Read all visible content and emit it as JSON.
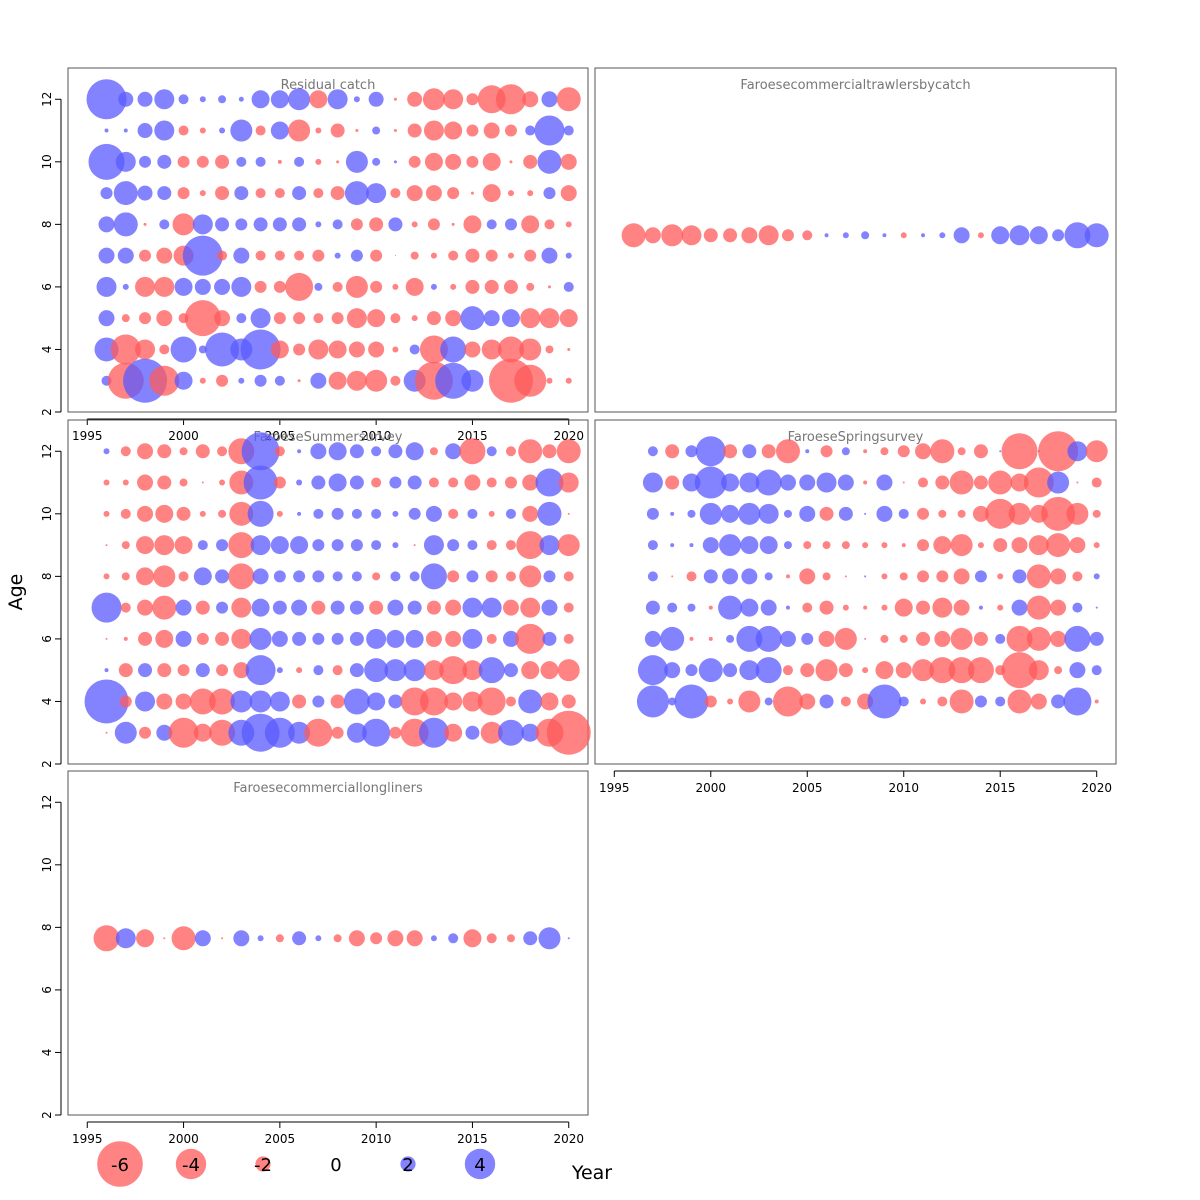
{
  "figure": {
    "ylabel": "Age",
    "xlabel": "Year",
    "colors": {
      "negative": "#ff5a5a",
      "positive": "#5a5aff",
      "fill_opacity": 0.75
    }
  },
  "legend": {
    "values": [
      -6,
      -4,
      -2,
      0,
      2,
      4
    ],
    "labels": [
      "-6",
      "-4",
      "-2",
      "0",
      "2",
      "4"
    ]
  },
  "chart_data": [
    {
      "type": "scatter",
      "title": "Residual catch",
      "xlim": [
        1994,
        2021
      ],
      "ylim": [
        2,
        13
      ],
      "xticks": [
        "1995",
        "2000",
        "2005",
        "2010",
        "2015",
        "2020"
      ],
      "yticks": [
        "2",
        "4",
        "6",
        "8",
        "10",
        "12"
      ],
      "start_year": 1996,
      "ages": [
        12,
        11,
        10,
        9,
        8,
        7,
        6,
        5,
        4,
        3
      ],
      "residuals": [
        [
          4.0,
          1.5,
          1.5,
          2.0,
          1.0,
          0.6,
          0.8,
          0.5,
          1.8,
          1.8,
          2.2,
          -1.8,
          2.0,
          0.6,
          1.5,
          -0.3,
          -1.5,
          -2.2,
          -2.0,
          -1.2,
          -2.8,
          -3.0,
          -1.6,
          1.6,
          -2.4
        ],
        [
          0.4,
          0.4,
          1.5,
          2.0,
          -1.0,
          -0.6,
          0.6,
          2.2,
          -1.0,
          1.8,
          -2.2,
          -0.6,
          -1.4,
          -0.3,
          0.8,
          -0.3,
          -1.4,
          -2.0,
          -1.8,
          -1.2,
          -1.6,
          -1.2,
          1.0,
          3.0,
          1.0
        ],
        [
          3.6,
          2.0,
          1.2,
          1.4,
          -1.2,
          -1.2,
          -1.4,
          1.0,
          1.0,
          -0.4,
          1.0,
          -0.6,
          -0.3,
          2.2,
          0.8,
          0.3,
          -1.2,
          -1.8,
          -1.6,
          -1.2,
          -1.8,
          -0.3,
          -1.4,
          2.4,
          -1.6
        ],
        [
          1.2,
          2.4,
          1.5,
          1.4,
          -1.2,
          -0.6,
          -1.4,
          1.4,
          -1.0,
          -1.0,
          1.4,
          -1.0,
          -1.4,
          2.4,
          2.0,
          -1.0,
          -1.6,
          -1.6,
          -1.2,
          -0.3,
          -1.8,
          -0.6,
          -0.6,
          1.2,
          -1.6
        ],
        [
          1.6,
          2.4,
          -0.3,
          1.0,
          -2.2,
          2.0,
          1.4,
          1.2,
          1.4,
          1.4,
          1.4,
          0.6,
          1.0,
          -1.2,
          -1.4,
          1.4,
          -0.6,
          -1.2,
          -0.3,
          -1.8,
          1.0,
          1.2,
          -1.8,
          -1.0,
          -0.6
        ],
        [
          1.6,
          1.6,
          -1.2,
          -1.6,
          -2.0,
          4.0,
          -1.0,
          1.6,
          -1.0,
          -1.0,
          -1.0,
          -1.2,
          0.6,
          1.2,
          -1.2,
          0.1,
          -0.8,
          -0.6,
          -1.0,
          -1.4,
          -1.2,
          -0.6,
          -1.2,
          1.6,
          0.6
        ],
        [
          2.0,
          0.6,
          -2.0,
          -2.0,
          1.8,
          1.6,
          1.6,
          2.0,
          -1.2,
          -1.2,
          -2.8,
          0.8,
          -1.0,
          -2.2,
          -1.2,
          -0.6,
          -1.8,
          0.6,
          -0.6,
          -1.4,
          -1.4,
          -1.4,
          -0.8,
          -0.3,
          1.0
        ],
        [
          1.6,
          -0.8,
          -1.2,
          -1.6,
          -1.0,
          -3.6,
          -1.6,
          1.0,
          2.0,
          -1.2,
          -1.2,
          -1.0,
          -1.2,
          -2.0,
          -1.8,
          -1.0,
          -0.6,
          -1.4,
          -1.6,
          2.4,
          1.6,
          1.8,
          -2.0,
          -2.0,
          -1.8
        ],
        [
          2.4,
          -3.0,
          -2.0,
          -1.0,
          2.6,
          0.8,
          3.4,
          2.2,
          4.0,
          -1.8,
          -1.2,
          -2.0,
          -1.8,
          -1.6,
          -1.6,
          -0.6,
          1.0,
          -2.8,
          2.6,
          -1.6,
          -2.0,
          -2.6,
          -2.2,
          -0.8,
          -0.3
        ],
        [
          1.0,
          -3.6,
          4.4,
          -3.0,
          1.8,
          -0.6,
          -1.2,
          0.6,
          1.2,
          1.0,
          -0.3,
          1.6,
          -1.8,
          -2.0,
          -2.2,
          -1.0,
          2.2,
          -3.8,
          3.6,
          2.2,
          -0.1,
          -4.4,
          -3.2,
          -0.6,
          -0.6
        ]
      ]
    },
    {
      "type": "scatter",
      "title": "Faroesecommercialtrawlersbycatch",
      "xlim": [
        1994,
        2021
      ],
      "ylim": [
        2,
        13
      ],
      "start_year": 1996,
      "ages": [
        7.65
      ],
      "residuals": [
        [
          -2.4,
          -1.6,
          -2.2,
          -2.0,
          -1.4,
          -1.4,
          -1.6,
          -2.0,
          -1.2,
          -1.0,
          0.4,
          0.6,
          0.8,
          0.4,
          -0.6,
          0.4,
          0.6,
          1.6,
          -0.6,
          1.8,
          2.0,
          1.8,
          1.2,
          2.6,
          2.4
        ]
      ]
    },
    {
      "type": "scatter",
      "title": "FaroeseSummersurvey",
      "xlim": [
        1994,
        2021
      ],
      "ylim": [
        2,
        13
      ],
      "yticks": [
        "2",
        "4",
        "6",
        "8",
        "10",
        "12"
      ],
      "start_year": 1996,
      "ages": [
        12,
        11,
        10,
        9,
        8,
        7,
        6,
        5,
        4,
        3
      ],
      "residuals": [
        [
          0.6,
          -1.0,
          -1.6,
          -1.4,
          -0.8,
          -1.4,
          -1.0,
          -2.6,
          3.8,
          -1.0,
          0.4,
          1.6,
          1.8,
          1.4,
          1.0,
          1.4,
          1.8,
          -0.8,
          1.6,
          -2.6,
          1.0,
          -1.0,
          -2.4,
          -1.4,
          -2.4
        ],
        [
          -0.6,
          -0.6,
          -1.6,
          -1.4,
          -0.8,
          -0.2,
          -0.6,
          -2.4,
          3.4,
          -1.2,
          0.6,
          1.4,
          1.8,
          1.4,
          -1.0,
          1.2,
          1.4,
          -1.0,
          -1.0,
          -1.6,
          -1.0,
          -1.2,
          -1.6,
          2.8,
          -2.0
        ],
        [
          -0.6,
          -1.0,
          -1.6,
          -1.8,
          -1.4,
          -0.6,
          -0.8,
          -2.4,
          2.6,
          -0.6,
          0.4,
          1.0,
          1.2,
          1.0,
          1.0,
          0.6,
          1.2,
          1.6,
          -1.0,
          1.0,
          -0.6,
          1.0,
          -1.6,
          2.4,
          -0.2
        ],
        [
          -0.2,
          -0.8,
          -1.8,
          -2.0,
          -1.8,
          1.0,
          1.2,
          -2.6,
          2.0,
          1.8,
          1.8,
          1.2,
          1.2,
          1.2,
          1.0,
          0.6,
          -0.2,
          2.0,
          1.2,
          1.0,
          -1.0,
          -1.0,
          -2.8,
          2.0,
          -2.2
        ],
        [
          -0.6,
          -0.8,
          -1.8,
          -2.2,
          -1.0,
          1.8,
          1.4,
          -2.6,
          1.6,
          1.2,
          1.2,
          1.2,
          1.0,
          1.0,
          -0.8,
          1.0,
          1.0,
          2.6,
          -1.2,
          1.2,
          -1.2,
          -1.0,
          -2.2,
          1.2,
          -1.0
        ],
        [
          3.0,
          -1.0,
          -1.6,
          -2.4,
          1.6,
          -1.4,
          1.2,
          -2.0,
          1.8,
          1.4,
          1.6,
          -1.4,
          1.4,
          1.4,
          -1.4,
          1.6,
          1.4,
          -1.4,
          -1.6,
          2.0,
          2.0,
          -1.6,
          -2.0,
          1.6,
          -1.0
        ],
        [
          -0.2,
          -0.4,
          -1.4,
          -1.8,
          1.6,
          -1.2,
          -1.4,
          -2.0,
          2.2,
          1.6,
          1.4,
          1.2,
          1.2,
          1.4,
          2.0,
          1.8,
          1.8,
          -1.6,
          -1.6,
          2.0,
          -1.0,
          1.6,
          -3.0,
          1.4,
          -1.0
        ],
        [
          0.4,
          -1.4,
          1.4,
          -1.4,
          -1.2,
          1.4,
          -1.2,
          -1.6,
          3.0,
          0.6,
          -0.6,
          1.0,
          -1.0,
          1.4,
          2.4,
          2.2,
          2.2,
          -2.0,
          -2.8,
          -2.0,
          2.6,
          1.4,
          -1.8,
          -1.8,
          -2.2
        ],
        [
          4.4,
          -1.2,
          2.0,
          -1.6,
          -1.6,
          -2.6,
          -2.6,
          2.2,
          2.2,
          2.0,
          -1.4,
          1.2,
          -1.4,
          2.6,
          1.8,
          1.4,
          -2.8,
          -2.8,
          -1.8,
          -2.0,
          -2.8,
          -1.0,
          2.4,
          -1.8,
          -1.4
        ],
        [
          -0.2,
          2.2,
          -1.2,
          1.6,
          -3.0,
          -1.8,
          -2.6,
          2.6,
          3.8,
          3.0,
          2.2,
          -2.8,
          -1.2,
          2.0,
          2.8,
          -1.2,
          -2.8,
          3.0,
          -1.8,
          1.4,
          -2.2,
          2.6,
          1.8,
          -2.8,
          -4.4
        ]
      ]
    },
    {
      "type": "scatter",
      "title": "FaroeseSpringsurvey",
      "xlim": [
        1994,
        2021
      ],
      "ylim": [
        2,
        13
      ],
      "xticks": [
        "1995",
        "2000",
        "2005",
        "2010",
        "2015",
        "2020"
      ],
      "start_year": 1997,
      "ages": [
        12,
        11,
        10,
        9,
        8,
        7,
        6,
        5,
        4
      ],
      "residuals": [
        [
          1.0,
          -1.4,
          1.2,
          3.0,
          -1.4,
          1.4,
          -1.4,
          -2.4,
          0.4,
          -1.2,
          0.8,
          -0.4,
          -0.8,
          -1.2,
          -1.6,
          -2.4,
          -0.8,
          -1.4,
          0.2,
          -3.6,
          0.2,
          -4.0,
          2.0,
          -2.2
        ],
        [
          2.0,
          -1.4,
          1.8,
          3.2,
          1.8,
          2.0,
          2.6,
          1.6,
          1.6,
          2.0,
          1.6,
          -0.4,
          1.6,
          -0.2,
          -1.0,
          -1.4,
          -2.4,
          -1.4,
          -2.4,
          -1.8,
          -3.0,
          2.2,
          -0.2,
          -1.0
        ],
        [
          1.2,
          0.4,
          0.8,
          2.2,
          1.8,
          2.2,
          2.0,
          0.8,
          1.6,
          -1.4,
          1.4,
          0.2,
          1.6,
          1.0,
          -1.2,
          -0.8,
          -0.8,
          -1.6,
          -3.0,
          -2.2,
          -1.8,
          -3.4,
          -2.2,
          -0.8
        ],
        [
          1.0,
          0.4,
          0.4,
          1.6,
          2.2,
          1.8,
          1.8,
          0.8,
          -0.8,
          -0.8,
          -0.8,
          -0.6,
          -0.6,
          -0.4,
          -1.2,
          -1.8,
          -2.2,
          -0.6,
          -1.4,
          -1.6,
          -2.0,
          -2.4,
          -1.6,
          -0.6
        ],
        [
          1.0,
          -0.2,
          -1.0,
          1.4,
          1.6,
          1.6,
          0.8,
          -0.4,
          -1.6,
          -0.8,
          -0.2,
          0.2,
          -0.6,
          -0.8,
          -1.2,
          -1.2,
          -1.6,
          1.2,
          -0.6,
          1.4,
          -2.4,
          -1.6,
          -1.0,
          0.6
        ],
        [
          1.4,
          1.0,
          0.8,
          -0.4,
          2.4,
          1.8,
          1.6,
          0.4,
          -1.0,
          -1.4,
          -0.6,
          -0.4,
          -0.6,
          -1.8,
          -1.4,
          -2.0,
          -1.6,
          0.4,
          -0.6,
          1.6,
          -2.4,
          -1.6,
          1.0,
          0.2
        ],
        [
          1.6,
          2.4,
          -0.4,
          -0.4,
          0.8,
          2.6,
          2.6,
          1.6,
          1.2,
          -1.6,
          -2.2,
          -0.2,
          -0.8,
          -0.8,
          -1.4,
          -1.6,
          -2.2,
          -1.4,
          1.0,
          -2.6,
          -2.4,
          -1.6,
          2.6,
          1.4
        ],
        [
          3.0,
          1.6,
          1.2,
          2.4,
          1.4,
          2.0,
          2.6,
          -1.0,
          -1.4,
          -2.2,
          -1.4,
          -0.6,
          -1.8,
          -1.6,
          -2.2,
          -2.6,
          -2.6,
          -2.6,
          -1.0,
          -3.6,
          -2.0,
          -0.8,
          1.6,
          1.0
        ],
        [
          3.2,
          0.8,
          3.4,
          -1.2,
          -0.6,
          -2.2,
          0.8,
          -3.0,
          -1.6,
          1.4,
          -1.0,
          -1.6,
          3.4,
          1.0,
          -0.6,
          -1.0,
          -2.4,
          1.2,
          1.0,
          -2.4,
          -1.6,
          1.4,
          2.8,
          -0.4
        ]
      ]
    },
    {
      "type": "scatter",
      "title": "Faroesecommerciallongliners",
      "xlim": [
        1994,
        2021
      ],
      "ylim": [
        2,
        13
      ],
      "xticks": [
        "1995",
        "2000",
        "2005",
        "2010",
        "2015",
        "2020"
      ],
      "yticks": [
        "2",
        "4",
        "6",
        "8",
        "10",
        "12"
      ],
      "start_year": 1996,
      "ages": [
        7.65
      ],
      "residuals": [
        [
          -2.6,
          2.0,
          -1.8,
          -0.2,
          -2.4,
          1.6,
          -0.2,
          1.6,
          0.6,
          -0.8,
          1.4,
          0.6,
          -0.8,
          -1.6,
          -1.2,
          -1.6,
          -1.6,
          0.6,
          1.0,
          -1.8,
          -1.0,
          -0.8,
          1.4,
          2.2,
          0.2
        ]
      ]
    }
  ]
}
